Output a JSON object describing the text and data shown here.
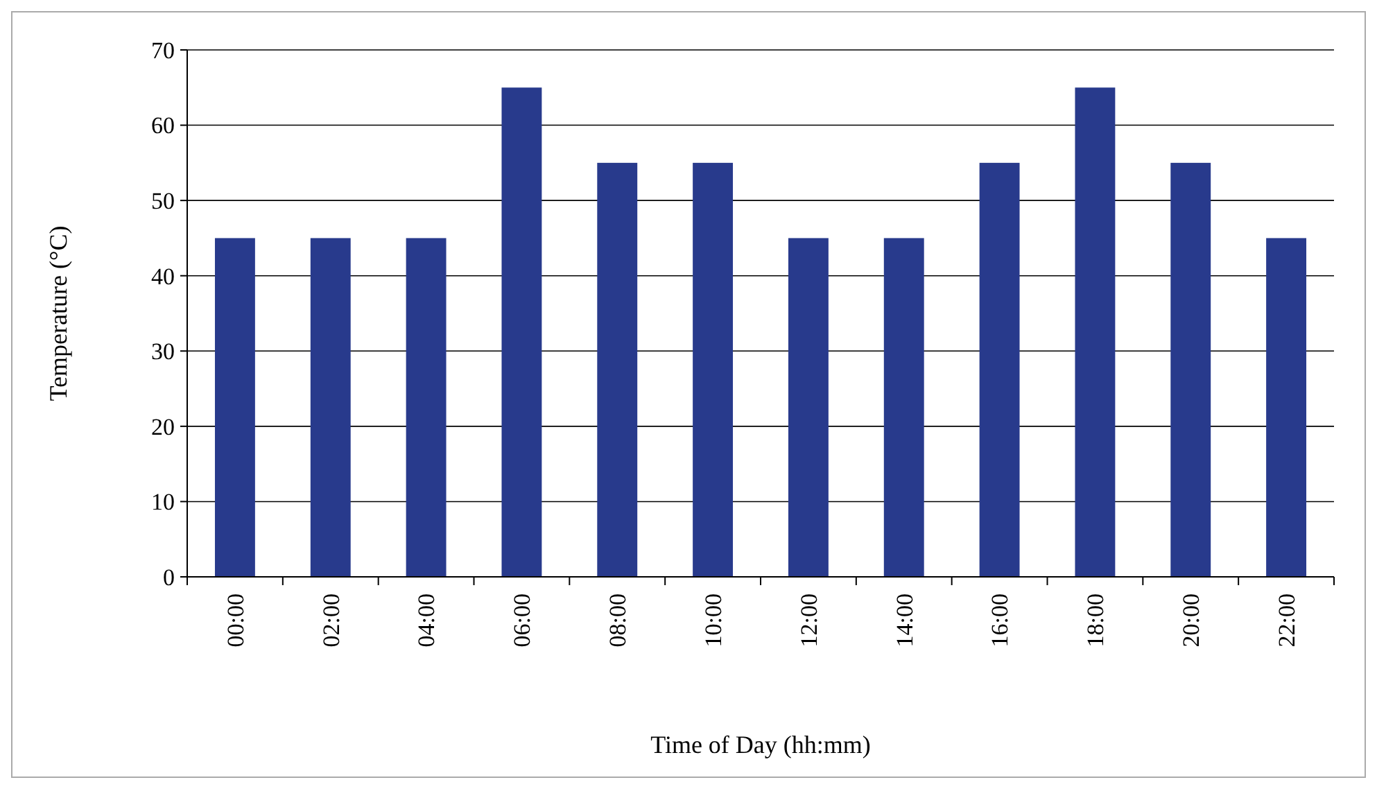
{
  "chart_data": {
    "type": "bar",
    "xlabel": "Time of Day (hh:mm)",
    "ylabel": "Temperature (°C)",
    "categories": [
      "00:00",
      "02:00",
      "04:00",
      "06:00",
      "08:00",
      "10:00",
      "12:00",
      "14:00",
      "16:00",
      "18:00",
      "20:00",
      "22:00"
    ],
    "values": [
      45,
      45,
      45,
      65,
      55,
      55,
      45,
      45,
      55,
      65,
      55,
      45
    ],
    "color": "#283a8c",
    "ylim": [
      0,
      70
    ],
    "yticks": [
      0,
      10,
      20,
      30,
      40,
      50,
      60,
      70
    ],
    "grid": "y"
  }
}
